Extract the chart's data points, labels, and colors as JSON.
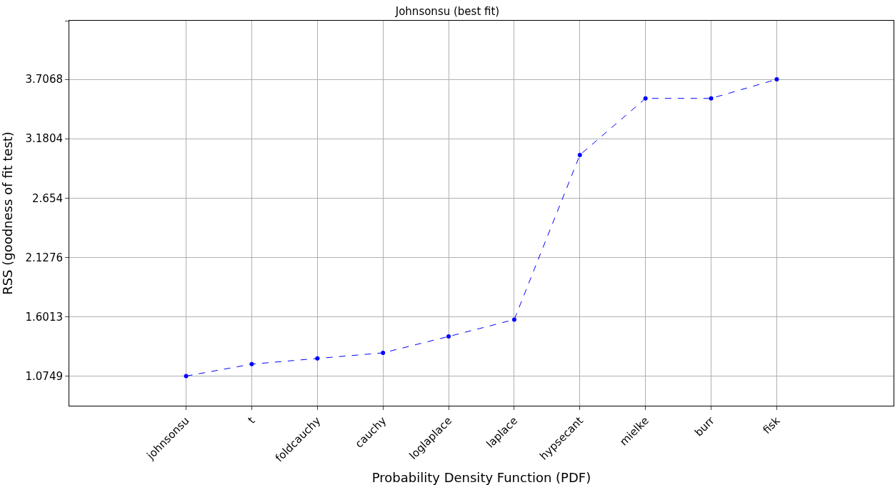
{
  "chart_data": {
    "type": "line",
    "title": "Johnsonsu (best fit)",
    "xlabel": "Probability Density Function (PDF)",
    "ylabel": "RSS (goodness of fit test)",
    "categories": [
      "johnsonsu",
      "t",
      "foldcauchy",
      "cauchy",
      "loglaplace",
      "laplace",
      "hypsecant",
      "mielke",
      "burr",
      "fisk"
    ],
    "series": [
      {
        "color": "#0000ff",
        "values": [
          1.075,
          1.181,
          1.231,
          1.281,
          1.426,
          1.576,
          3.036,
          3.538,
          3.538,
          3.707
        ]
      }
    ],
    "ylim": [
      0.812,
      4.227
    ],
    "yticks": [
      1.0749,
      1.6013,
      2.1276,
      2.654,
      3.1804,
      3.7068,
      {
        "value": 4.227,
        "label": null
      }
    ],
    "grid": true,
    "marker": "circle",
    "line_style": "dashed"
  }
}
